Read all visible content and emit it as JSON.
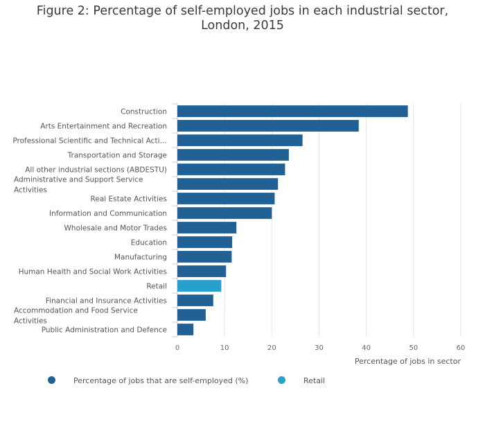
{
  "title": {
    "line1": "Figure 2: Percentage of self-employed jobs in each industrial sector,",
    "line2": "London, 2015"
  },
  "chart_data": {
    "type": "bar",
    "orientation": "horizontal",
    "title": "Figure 2: Percentage of self-employed jobs in each industrial sector, London, 2015",
    "xlabel": "Percentage of jobs in sector",
    "ylabel": "",
    "xlim": [
      0,
      60
    ],
    "xticks": [
      0,
      10,
      20,
      30,
      40,
      50,
      60
    ],
    "grid": true,
    "legend_position": "bottom",
    "categories": [
      {
        "label": "Construction",
        "display": [
          "Construction"
        ],
        "value": 48.8,
        "series": "self-employed"
      },
      {
        "label": "Arts Entertainment and Recreation",
        "display": [
          "Arts Entertainment and Recreation"
        ],
        "value": 38.4,
        "series": "self-employed"
      },
      {
        "label": "Professional Scientific and Technical Activities",
        "display": [
          "Professional Scientific and Technical Acti…"
        ],
        "value": 26.5,
        "series": "self-employed"
      },
      {
        "label": "Transportation and Storage",
        "display": [
          "Transportation and Storage"
        ],
        "value": 23.6,
        "series": "self-employed"
      },
      {
        "label": "All other industrial sections (ABDESTU)",
        "display": [
          "All other industrial sections (ABDESTU)"
        ],
        "value": 22.8,
        "series": "self-employed"
      },
      {
        "label": "Administrative and Support Service Activities",
        "display": [
          "Administrative and Support Service",
          "Activities"
        ],
        "value": 21.3,
        "series": "self-employed"
      },
      {
        "label": "Real Estate Activities",
        "display": [
          "Real Estate Activities"
        ],
        "value": 20.6,
        "series": "self-employed"
      },
      {
        "label": "Information and Communication",
        "display": [
          "Information and Communication"
        ],
        "value": 20.0,
        "series": "self-employed"
      },
      {
        "label": "Wholesale and Motor Trades",
        "display": [
          "Wholesale and Motor Trades"
        ],
        "value": 12.5,
        "series": "self-employed"
      },
      {
        "label": "Education",
        "display": [
          "Education"
        ],
        "value": 11.6,
        "series": "self-employed"
      },
      {
        "label": "Manufacturing",
        "display": [
          "Manufacturing"
        ],
        "value": 11.5,
        "series": "self-employed"
      },
      {
        "label": "Human Health and Social Work Activities",
        "display": [
          "Human Health and Social Work Activities"
        ],
        "value": 10.3,
        "series": "self-employed"
      },
      {
        "label": "Retail",
        "display": [
          "Retail"
        ],
        "value": 9.3,
        "series": "retail"
      },
      {
        "label": "Financial and Insurance Activities",
        "display": [
          "Financial and Insurance Activities"
        ],
        "value": 7.6,
        "series": "self-employed"
      },
      {
        "label": "Accommodation and Food Service Activities",
        "display": [
          "Accommodation and Food Service",
          "Activities"
        ],
        "value": 6.0,
        "series": "self-employed"
      },
      {
        "label": "Public Administration and Defence",
        "display": [
          "Public Administration and Defence"
        ],
        "value": 3.4,
        "series": "self-employed"
      }
    ],
    "series": [
      {
        "key": "self-employed",
        "name": "Percentage of jobs that are self-employed (%)",
        "color": "#206095"
      },
      {
        "key": "retail",
        "name": "Retail",
        "color": "#27a0cc"
      }
    ]
  }
}
